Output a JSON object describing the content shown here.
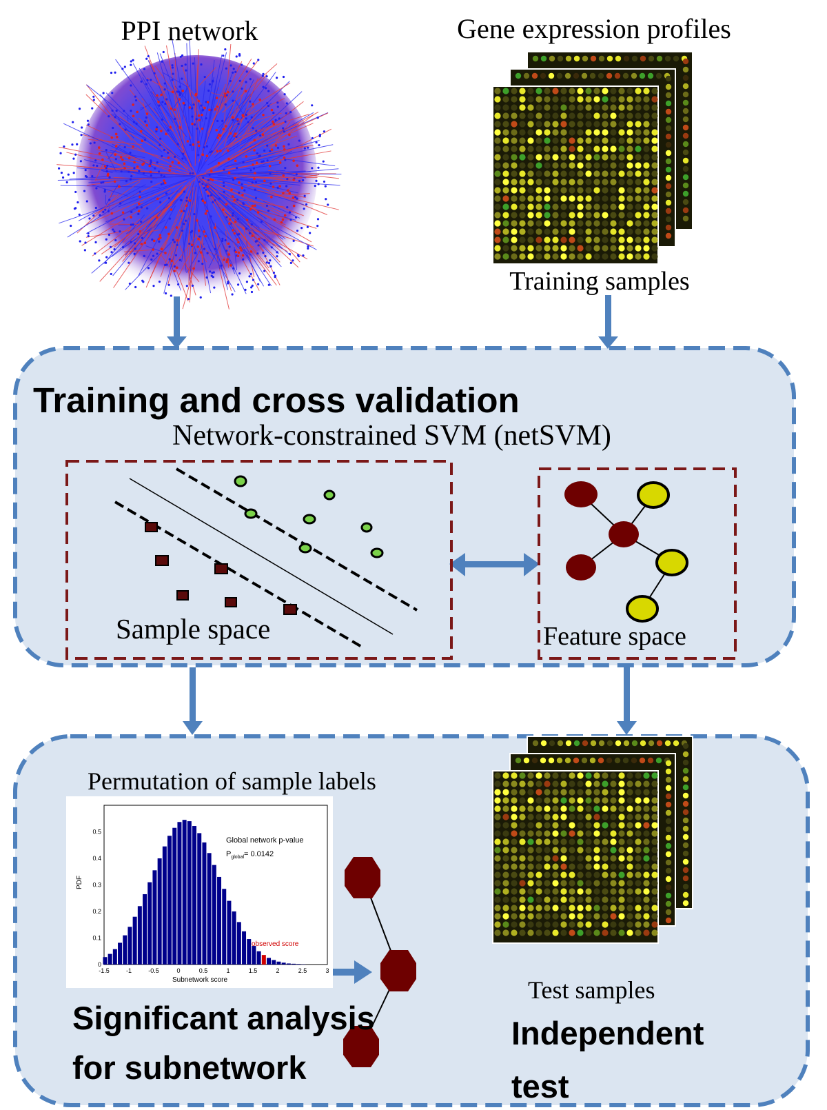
{
  "top": {
    "ppi_title": "PPI network",
    "gene_title": "Gene expression profiles",
    "training_samples": "Training samples"
  },
  "training_panel": {
    "title": "Training and cross validation",
    "subtitle": "Network-constrained SVM (netSVM)",
    "sample_space": "Sample space",
    "feature_space": "Feature space"
  },
  "bottom_panel": {
    "permutation_label": "Permutation of sample labels",
    "significant_title_line1": "Significant analysis",
    "significant_title_line2": "for subnetwork",
    "test_samples": "Test samples",
    "independent_line1": "Independent",
    "independent_line2": "test"
  },
  "histogram": {
    "annotation_title": "Global network p-value",
    "p_label": "P",
    "p_subscript": "global",
    "p_value": "= 0.0142",
    "observed": "observed score",
    "xlabel": "Subnetwork score",
    "ylabel": "PDF",
    "xticks": [
      "-1.5",
      "-1",
      "-0.5",
      "0",
      "0.5",
      "1",
      "1.5",
      "2",
      "2.5",
      "3"
    ],
    "yticks": [
      "0",
      "0.1",
      "0.2",
      "0.3",
      "0.4",
      "0.5"
    ]
  },
  "colors": {
    "panel_fill": "#dbe5f1",
    "panel_border": "#4f81bd",
    "arrow": "#4f81bd",
    "dashed_box": "#7b1818",
    "node_dark": "#6e0000",
    "node_yellow": "#d8d800",
    "bar": "#00008b",
    "observed_bar": "#d00000"
  },
  "chart_data": {
    "type": "bar",
    "title": "",
    "xlabel": "Subnetwork score",
    "ylabel": "PDF",
    "xlim": [
      -1.5,
      3
    ],
    "ylim": [
      0,
      0.6
    ],
    "x": [
      -1.48,
      -1.38,
      -1.28,
      -1.18,
      -1.08,
      -0.98,
      -0.88,
      -0.78,
      -0.68,
      -0.58,
      -0.48,
      -0.38,
      -0.28,
      -0.18,
      -0.08,
      0.02,
      0.12,
      0.22,
      0.32,
      0.42,
      0.52,
      0.62,
      0.72,
      0.82,
      0.92,
      1.02,
      1.12,
      1.22,
      1.32,
      1.42,
      1.52,
      1.62,
      1.72,
      1.82,
      1.92,
      2.02,
      2.12,
      2.22,
      2.32,
      2.42,
      2.52
    ],
    "values": [
      0.028,
      0.04,
      0.058,
      0.082,
      0.11,
      0.142,
      0.18,
      0.22,
      0.265,
      0.31,
      0.355,
      0.4,
      0.445,
      0.485,
      0.515,
      0.537,
      0.545,
      0.54,
      0.522,
      0.495,
      0.46,
      0.42,
      0.375,
      0.33,
      0.285,
      0.24,
      0.2,
      0.16,
      0.125,
      0.096,
      0.07,
      0.05,
      0.036,
      0.025,
      0.017,
      0.011,
      0.007,
      0.004,
      0.003,
      0.002,
      0.001
    ],
    "highlight": {
      "x": 1.72,
      "label": "observed score"
    },
    "annotations": [
      "Global network p-value",
      "Pglobal= 0.0142"
    ]
  }
}
